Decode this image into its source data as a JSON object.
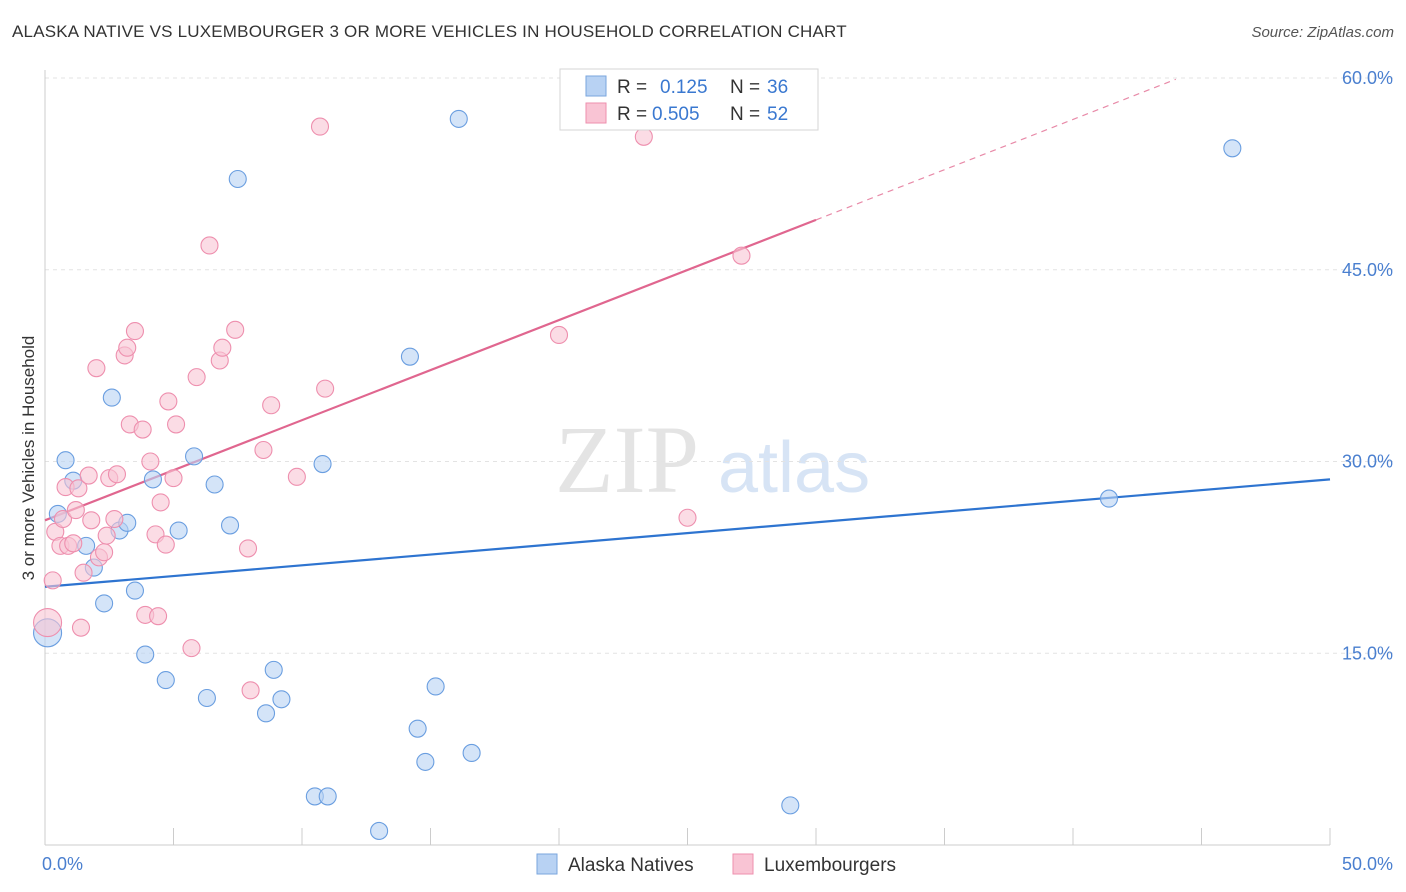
{
  "header": {
    "title": "ALASKA NATIVE VS LUXEMBOURGER 3 OR MORE VEHICLES IN HOUSEHOLD CORRELATION CHART",
    "source": "Source: ZipAtlas.com"
  },
  "watermark": {
    "zip": "ZIP",
    "atlas": "atlas"
  },
  "legend": {
    "rows": [
      {
        "r_label": "R =",
        "r_value": "0.125",
        "n_label": "N =",
        "n_value": "36",
        "color": "#a9c8f0"
      },
      {
        "r_label": "R =",
        "r_value": "0.505",
        "n_label": "N =",
        "n_value": "52",
        "color": "#f7b8cc"
      }
    ]
  },
  "bottom_legend": {
    "alaska": "Alaska Natives",
    "lux": "Luxembourgers"
  },
  "chart_data": {
    "type": "scatter",
    "title": "ALASKA NATIVE VS LUXEMBOURGER 3 OR MORE VEHICLES IN HOUSEHOLD CORRELATION CHART",
    "xlabel": "",
    "ylabel": "3 or more Vehicles in Household",
    "xlim": [
      0,
      50
    ],
    "ylim": [
      0,
      60
    ],
    "x_tick_labels": [
      {
        "value": 0,
        "label": "0.0%"
      },
      {
        "value": 50,
        "label": "50.0%"
      }
    ],
    "y_tick_labels": [
      {
        "value": 15,
        "label": "15.0%"
      },
      {
        "value": 30,
        "label": "30.0%"
      },
      {
        "value": 45,
        "label": "45.0%"
      },
      {
        "value": 60,
        "label": "60.0%"
      }
    ],
    "series": [
      {
        "name": "Alaska Natives",
        "color": "#6a9ee0",
        "fill": "#b8d2f3",
        "trend": {
          "x1": 0,
          "y1": 20.2,
          "x2": 50,
          "y2": 28.6,
          "color": "#2e74d0"
        },
        "points": [
          [
            0.1,
            16.6
          ],
          [
            0.5,
            25.9
          ],
          [
            0.8,
            30.1
          ],
          [
            1.1,
            28.5
          ],
          [
            1.6,
            23.4
          ],
          [
            1.9,
            21.7
          ],
          [
            2.3,
            18.9
          ],
          [
            2.6,
            35.0
          ],
          [
            2.9,
            24.6
          ],
          [
            3.2,
            25.2
          ],
          [
            3.5,
            19.9
          ],
          [
            3.9,
            14.9
          ],
          [
            4.2,
            28.6
          ],
          [
            4.7,
            12.9
          ],
          [
            5.2,
            24.6
          ],
          [
            5.8,
            30.4
          ],
          [
            6.3,
            11.5
          ],
          [
            6.6,
            28.2
          ],
          [
            7.2,
            25.0
          ],
          [
            7.5,
            52.1
          ],
          [
            8.6,
            10.3
          ],
          [
            8.9,
            13.7
          ],
          [
            9.2,
            11.4
          ],
          [
            10.5,
            3.8
          ],
          [
            10.8,
            29.8
          ],
          [
            11.0,
            3.8
          ],
          [
            13.0,
            1.1
          ],
          [
            14.2,
            38.2
          ],
          [
            14.5,
            9.1
          ],
          [
            14.8,
            6.5
          ],
          [
            15.2,
            12.4
          ],
          [
            16.1,
            56.8
          ],
          [
            16.6,
            7.2
          ],
          [
            29.0,
            3.1
          ],
          [
            41.4,
            27.1
          ],
          [
            46.2,
            54.5
          ]
        ]
      },
      {
        "name": "Luxembourgers",
        "color": "#ee8fae",
        "fill": "#f9c4d4",
        "trend": {
          "x1": 0,
          "y1": 25.4,
          "x2": 30,
          "y2": 48.9,
          "color": "#e0668f"
        },
        "trend_dashed": {
          "x1": 30,
          "y1": 48.9,
          "x2": 44,
          "y2": 59.9,
          "color": "#e88aa8"
        },
        "points": [
          [
            0.1,
            17.4
          ],
          [
            0.3,
            20.7
          ],
          [
            0.4,
            24.5
          ],
          [
            0.6,
            23.4
          ],
          [
            0.7,
            25.5
          ],
          [
            0.8,
            28.0
          ],
          [
            0.9,
            23.4
          ],
          [
            1.1,
            23.6
          ],
          [
            1.2,
            26.2
          ],
          [
            1.3,
            27.9
          ],
          [
            1.4,
            17.0
          ],
          [
            1.5,
            21.3
          ],
          [
            1.7,
            28.9
          ],
          [
            1.8,
            25.4
          ],
          [
            2.0,
            37.3
          ],
          [
            2.1,
            22.5
          ],
          [
            2.3,
            22.9
          ],
          [
            2.4,
            24.2
          ],
          [
            2.5,
            28.7
          ],
          [
            2.7,
            25.5
          ],
          [
            2.8,
            29.0
          ],
          [
            3.1,
            38.3
          ],
          [
            3.2,
            38.9
          ],
          [
            3.3,
            32.9
          ],
          [
            3.5,
            40.2
          ],
          [
            3.8,
            32.5
          ],
          [
            3.9,
            18.0
          ],
          [
            4.1,
            30.0
          ],
          [
            4.3,
            24.3
          ],
          [
            4.4,
            17.9
          ],
          [
            4.5,
            26.8
          ],
          [
            4.7,
            23.5
          ],
          [
            4.8,
            34.7
          ],
          [
            5.0,
            28.7
          ],
          [
            5.1,
            32.9
          ],
          [
            5.7,
            15.4
          ],
          [
            5.9,
            36.6
          ],
          [
            6.4,
            46.9
          ],
          [
            6.8,
            37.9
          ],
          [
            6.9,
            38.9
          ],
          [
            7.4,
            40.3
          ],
          [
            7.9,
            23.2
          ],
          [
            8.0,
            12.1
          ],
          [
            8.5,
            30.9
          ],
          [
            8.8,
            34.4
          ],
          [
            9.8,
            28.8
          ],
          [
            10.7,
            56.2
          ],
          [
            10.9,
            35.7
          ],
          [
            20.0,
            39.9
          ],
          [
            23.3,
            55.4
          ],
          [
            25.0,
            25.6
          ],
          [
            27.1,
            46.1
          ]
        ]
      }
    ],
    "grid": true,
    "legend_position": "top-center"
  }
}
